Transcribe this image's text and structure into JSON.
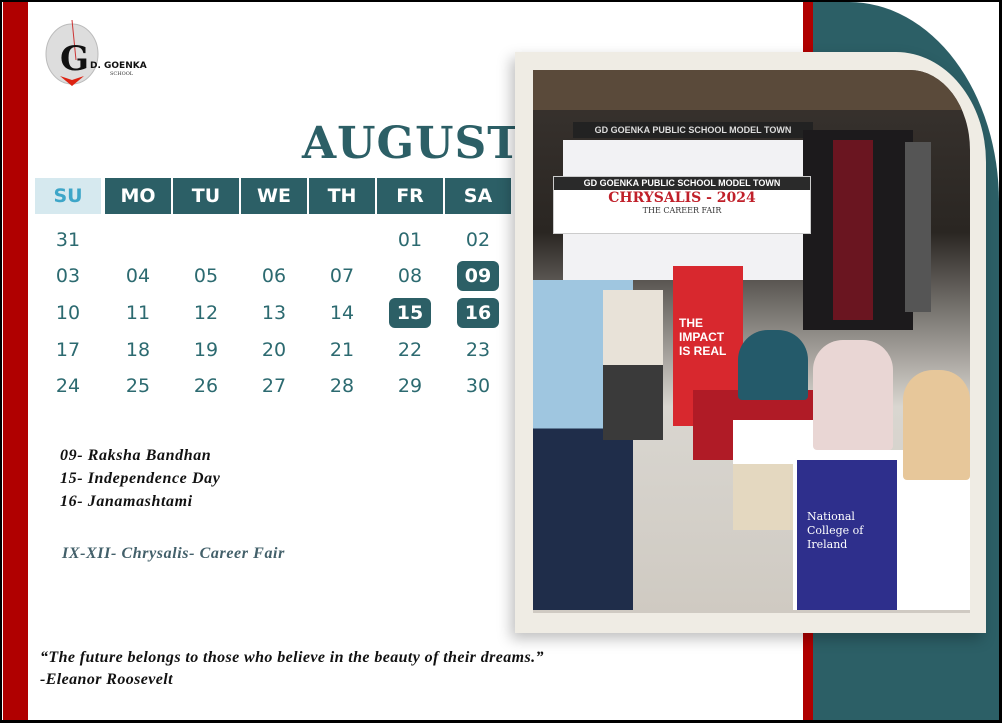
{
  "logo": {
    "brand": "D. GOENKA",
    "sub": "SCHOOL"
  },
  "calendar": {
    "month": "AUGUST",
    "weekdays": [
      "SU",
      "MO",
      "TU",
      "WE",
      "TH",
      "FR",
      "SA"
    ],
    "weeks": [
      [
        "31",
        "",
        "",
        "",
        "",
        "01",
        "02"
      ],
      [
        "03",
        "04",
        "05",
        "06",
        "07",
        "08",
        "09"
      ],
      [
        "10",
        "11",
        "12",
        "13",
        "14",
        "15",
        "16"
      ],
      [
        "17",
        "18",
        "19",
        "20",
        "21",
        "22",
        "23"
      ],
      [
        "24",
        "25",
        "26",
        "27",
        "28",
        "29",
        "30"
      ]
    ],
    "highlighted": [
      "09",
      "15",
      "16"
    ]
  },
  "holidays": [
    "09- Raksha Bandhan",
    "15- Independence Day",
    "16- Janamashtami"
  ],
  "event": "IX-XII- Chrysalis- Career Fair",
  "quote": {
    "text": "“The future belongs to those who believe in the beauty of their dreams.”",
    "author": "-Eleanor Roosevelt"
  },
  "photo": {
    "banner_top": "GD GOENKA PUBLIC SCHOOL MODEL TOWN",
    "banner_main": "GD GOENKA PUBLIC SCHOOL MODEL TOWN",
    "banner_title": "CHRYSALIS - 2024",
    "banner_sub": "THE CAREER FAIR",
    "standee": "THE IMPACT IS REAL",
    "table_cloth": "National College of Ireland"
  },
  "colors": {
    "teal": "#2c5f66",
    "red": "#b00000",
    "cream": "#efece4",
    "su_bg": "#d6e9ef"
  }
}
